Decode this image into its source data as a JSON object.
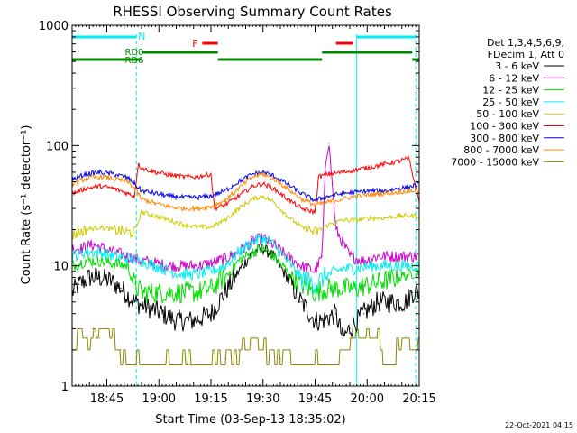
{
  "chart_data": {
    "type": "line",
    "title": "RHESSI Observing Summary Count Rates",
    "xlabel": "Start Time (03-Sep-13 18:35:02)",
    "ylabel": "Count Rate (s⁻¹ detector⁻¹)",
    "x_unit": "minutes after 18:35:02",
    "xlim": [
      0,
      100
    ],
    "ylim": [
      1,
      1000
    ],
    "yscale": "log",
    "x_ticks": [
      {
        "x": 10,
        "label": "18:45"
      },
      {
        "x": 25,
        "label": "19:00"
      },
      {
        "x": 40,
        "label": "19:15"
      },
      {
        "x": 55,
        "label": "19:30"
      },
      {
        "x": 70,
        "label": "19:45"
      },
      {
        "x": 85,
        "label": "20:00"
      },
      {
        "x": 100,
        "label": "20:15"
      }
    ],
    "y_ticks": [
      {
        "y": 1,
        "label": "1"
      },
      {
        "y": 10,
        "label": "10"
      },
      {
        "y": 100,
        "label": "100"
      },
      {
        "y": 1000,
        "label": "1000"
      }
    ],
    "legend": {
      "placement": "right",
      "header": [
        "Det 1,3,4,5,6,9,",
        "FDecim 1, Att 0"
      ]
    },
    "series": [
      {
        "name": "3 - 6 keV",
        "color": "#000000",
        "x": [
          0,
          2,
          5,
          8,
          11,
          14,
          18,
          22,
          26,
          30,
          35,
          40,
          44,
          48,
          52,
          55,
          58,
          62,
          66,
          70,
          72,
          76,
          78,
          80,
          84,
          88,
          92,
          96,
          98,
          100
        ],
        "y": [
          6,
          7,
          8,
          8,
          7.5,
          6.5,
          5,
          4.5,
          4,
          3.5,
          3.5,
          4,
          6,
          9,
          13,
          14,
          12,
          8,
          5,
          3.5,
          3.5,
          4,
          2.5,
          3,
          4,
          5,
          5,
          5,
          6,
          6
        ]
      },
      {
        "name": "6 - 12 keV",
        "color": "#cc00cc",
        "x": [
          0,
          3,
          6,
          9,
          12,
          16,
          20,
          24,
          28,
          32,
          36,
          40,
          44,
          48,
          52,
          55,
          58,
          62,
          66,
          70,
          72,
          73,
          74,
          76,
          80,
          84,
          88,
          92,
          96,
          100
        ],
        "y": [
          14,
          14,
          15,
          14,
          13,
          12,
          11,
          10.5,
          10,
          10,
          10,
          10.5,
          11.5,
          13,
          16,
          17,
          15,
          12,
          10,
          9,
          12,
          70,
          105,
          20,
          12,
          11,
          12,
          12,
          12,
          12
        ]
      },
      {
        "name": "12 - 25 keV",
        "color": "#00dd00",
        "x": [
          0,
          4,
          8,
          12,
          16,
          18,
          20,
          24,
          28,
          32,
          36,
          40,
          44,
          48,
          52,
          55,
          58,
          62,
          66,
          70,
          74,
          78,
          82,
          86,
          90,
          94,
          97,
          100
        ],
        "y": [
          10,
          11,
          11,
          10.5,
          10,
          7,
          6,
          6,
          6,
          6,
          6,
          6.5,
          8,
          11,
          13,
          14,
          12,
          9,
          7,
          6,
          6.5,
          6.5,
          6.5,
          7,
          7.5,
          8,
          8.5,
          9
        ]
      },
      {
        "name": "25 - 50 keV",
        "color": "#00eeee",
        "x": [
          0,
          4,
          8,
          12,
          16,
          20,
          24,
          28,
          32,
          36,
          40,
          44,
          48,
          52,
          55,
          58,
          62,
          66,
          70,
          74,
          78,
          82,
          86,
          90,
          94,
          97,
          100
        ],
        "y": [
          12,
          13,
          13,
          12,
          11.5,
          11,
          10,
          9,
          8.5,
          8.5,
          9,
          10,
          13,
          16,
          17,
          15,
          11,
          8,
          7,
          8.5,
          9.5,
          9.5,
          10,
          10,
          10,
          10,
          10
        ]
      },
      {
        "name": "50 - 100 keV",
        "color": "#cccc00",
        "x": [
          0,
          4,
          8,
          12,
          16,
          18,
          20,
          24,
          28,
          32,
          36,
          40,
          44,
          48,
          52,
          55,
          58,
          62,
          66,
          70,
          74,
          78,
          82,
          86,
          90,
          94,
          97,
          100
        ],
        "y": [
          18,
          20,
          21,
          20,
          19,
          19,
          28,
          26,
          24,
          22,
          21,
          21,
          24,
          30,
          36,
          38,
          34,
          26,
          21,
          19,
          22,
          24,
          24,
          25,
          25,
          26,
          26,
          26
        ]
      },
      {
        "name": "100 - 300 keV",
        "color": "#ff0000",
        "x": [
          0,
          4,
          8,
          12,
          16,
          18,
          19,
          20,
          24,
          28,
          32,
          36,
          40,
          41,
          44,
          48,
          52,
          55,
          58,
          62,
          66,
          70,
          71,
          74,
          78,
          82,
          86,
          90,
          94,
          97,
          100
        ],
        "y": [
          40,
          44,
          46,
          44,
          40,
          38,
          70,
          65,
          60,
          57,
          55,
          55,
          58,
          30,
          32,
          38,
          46,
          48,
          44,
          36,
          30,
          28,
          55,
          58,
          60,
          63,
          66,
          70,
          74,
          78,
          34
        ]
      },
      {
        "name": "300 - 800 keV",
        "color": "#0000ee",
        "x": [
          0,
          4,
          8,
          12,
          16,
          18,
          20,
          24,
          28,
          32,
          36,
          40,
          44,
          48,
          52,
          55,
          58,
          62,
          66,
          70,
          74,
          78,
          82,
          86,
          90,
          94,
          97,
          100
        ],
        "y": [
          52,
          58,
          60,
          58,
          54,
          48,
          42,
          40,
          38,
          37,
          37,
          38,
          42,
          50,
          58,
          60,
          56,
          48,
          40,
          35,
          38,
          40,
          41,
          42,
          42,
          44,
          45,
          48
        ]
      },
      {
        "name": "800 - 7000 keV",
        "color": "#ff8800",
        "x": [
          0,
          4,
          8,
          12,
          16,
          18,
          20,
          24,
          28,
          32,
          36,
          40,
          44,
          48,
          52,
          55,
          58,
          62,
          66,
          70,
          74,
          78,
          82,
          86,
          90,
          94,
          97,
          100
        ],
        "y": [
          48,
          53,
          55,
          53,
          50,
          44,
          36,
          33,
          31,
          30,
          30,
          31,
          35,
          44,
          55,
          58,
          53,
          44,
          36,
          32,
          34,
          36,
          38,
          39,
          40,
          41,
          42,
          42
        ]
      },
      {
        "name": "7000 - 15000 keV",
        "color": "#888800",
        "x": [
          0,
          2,
          4,
          6,
          8,
          10,
          12,
          14,
          16,
          18,
          22,
          26,
          30,
          34,
          38,
          40,
          44,
          48,
          52,
          56,
          60,
          64,
          68,
          72,
          76,
          80,
          84,
          88,
          92,
          96,
          98,
          100
        ],
        "y": [
          2.5,
          3,
          2.5,
          3,
          2.5,
          3,
          2.5,
          2,
          1.5,
          1.5,
          1.5,
          1.5,
          1.5,
          1.5,
          1.5,
          1.5,
          1.7,
          2,
          2.5,
          2,
          1.7,
          1.5,
          1.5,
          1.5,
          1.5,
          2.5,
          2.5,
          2.5,
          1.5,
          2.5,
          2,
          2.5
        ]
      }
    ],
    "annotations": {
      "night_bars": [
        {
          "label": "N",
          "x_start": 0,
          "x_end": 18.5,
          "color": "#00eeee"
        },
        {
          "label": "",
          "x_start": 82,
          "x_end": 99,
          "color": "#00eeee"
        }
      ],
      "flare_bars": [
        {
          "label": "F",
          "x_start": 37.5,
          "x_end": 42,
          "color": "#ff0000"
        },
        {
          "label": "",
          "x_start": 76,
          "x_end": 81,
          "color": "#ff0000"
        }
      ],
      "decimation_bars": [
        {
          "label": "RD6",
          "x_start": 0,
          "x_end": 20,
          "row": 2,
          "color": "#008800"
        },
        {
          "label": "RD0",
          "x_start": 20,
          "x_end": 42,
          "row": 1,
          "color": "#008800"
        },
        {
          "label": "",
          "x_start": 42,
          "x_end": 72,
          "row": 2,
          "color": "#008800"
        },
        {
          "label": "",
          "x_start": 72,
          "x_end": 98,
          "row": 1,
          "color": "#008800"
        },
        {
          "label": "",
          "x_start": 98,
          "x_end": 100,
          "row": 2,
          "color": "#008800"
        }
      ],
      "boundary_lines": [
        {
          "x": 0,
          "style": "solid",
          "color": "#00eeee"
        },
        {
          "x": 18.5,
          "style": "dashed",
          "color": "#00eeee"
        },
        {
          "x": 82,
          "style": "solid",
          "color": "#00eeee"
        },
        {
          "x": 99,
          "style": "dashed",
          "color": "#00eeee"
        }
      ]
    },
    "footer_date": "22-Oct-2021 04:15"
  }
}
